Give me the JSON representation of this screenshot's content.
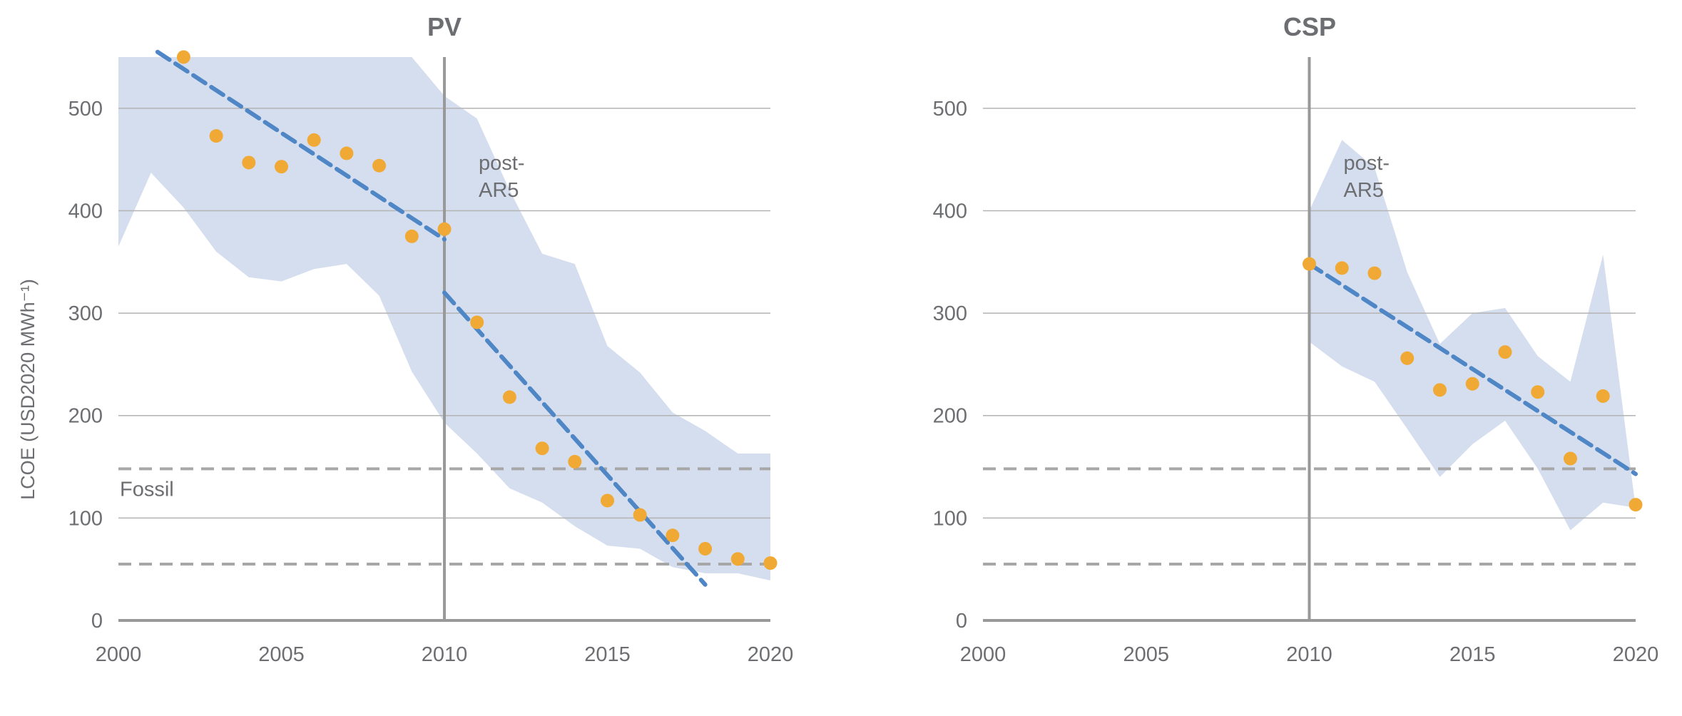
{
  "colors": {
    "band": "#d5deee",
    "trend": "#4f86c6",
    "point": "#f0a935",
    "grid": "#b3b3b3",
    "axis": "#999999",
    "ref_line": "#a7a7a7",
    "text": "#6d6e71"
  },
  "y_label": "LCOE (USD2020 MWh⁻¹)",
  "chart_data": [
    {
      "type": "scatter",
      "title": "PV",
      "xlim": [
        2000,
        2020
      ],
      "ylim": [
        0,
        550
      ],
      "x_ticks": [
        "2000",
        "2005",
        "2010",
        "2015",
        "2020"
      ],
      "y_ticks": [
        "0",
        "100",
        "200",
        "300",
        "400",
        "500"
      ],
      "grid": true,
      "vline": {
        "x": 2010,
        "label": [
          "post-",
          "AR5"
        ]
      },
      "fossil_range": {
        "label": "Fossil",
        "low": 55,
        "high": 148
      },
      "points": {
        "x": [
          2002,
          2003,
          2004,
          2005,
          2006,
          2007,
          2008,
          2009,
          2010,
          2011,
          2012,
          2013,
          2014,
          2015,
          2016,
          2017,
          2018,
          2019,
          2020
        ],
        "y": [
          550,
          473,
          447,
          443,
          469,
          456,
          444,
          375,
          382,
          291,
          218,
          168,
          155,
          117,
          103,
          83,
          70,
          60,
          56
        ]
      },
      "trend_lines": [
        {
          "x": [
            2001.2,
            2010
          ],
          "y": [
            555,
            372
          ]
        },
        {
          "x": [
            2010,
            2018
          ],
          "y": [
            320,
            35
          ]
        }
      ],
      "band": {
        "x": [
          2000,
          2001,
          2002,
          2003,
          2004,
          2005,
          2006,
          2007,
          2008,
          2009,
          2010,
          2011,
          2012,
          2013,
          2014,
          2015,
          2016,
          2017,
          2018,
          2019,
          2020
        ],
        "upper": [
          550,
          550,
          550,
          550,
          550,
          550,
          550,
          550,
          550,
          550,
          512,
          490,
          420,
          358,
          348,
          268,
          242,
          203,
          185,
          163,
          163
        ],
        "lower": [
          365,
          437,
          403,
          360,
          335,
          331,
          343,
          348,
          317,
          243,
          193,
          163,
          129,
          115,
          92,
          73,
          70,
          52,
          46,
          46,
          39
        ]
      }
    },
    {
      "type": "scatter",
      "title": "CSP",
      "xlim": [
        2000,
        2020
      ],
      "ylim": [
        0,
        550
      ],
      "x_ticks": [
        "2000",
        "2005",
        "2010",
        "2015",
        "2020"
      ],
      "y_ticks": [
        "0",
        "100",
        "200",
        "300",
        "400",
        "500"
      ],
      "grid": true,
      "vline": {
        "x": 2010,
        "label": [
          "post-",
          "AR5"
        ]
      },
      "fossil_range": {
        "label": "",
        "low": 55,
        "high": 148
      },
      "points": {
        "x": [
          2010,
          2011,
          2012,
          2013,
          2014,
          2015,
          2016,
          2017,
          2018,
          2019,
          2020
        ],
        "y": [
          348,
          344,
          339,
          256,
          225,
          231,
          262,
          223,
          158,
          219,
          113
        ]
      },
      "trend_lines": [
        {
          "x": [
            2010,
            2020
          ],
          "y": [
            348,
            143
          ]
        }
      ],
      "band": {
        "x": [
          2010,
          2011,
          2012,
          2013,
          2014,
          2015,
          2016,
          2017,
          2018,
          2019,
          2020
        ],
        "upper": [
          400,
          469,
          442,
          340,
          270,
          300,
          305,
          258,
          233,
          357,
          110
        ],
        "lower": [
          272,
          248,
          233,
          187,
          140,
          172,
          195,
          148,
          88,
          115,
          110
        ]
      }
    }
  ]
}
